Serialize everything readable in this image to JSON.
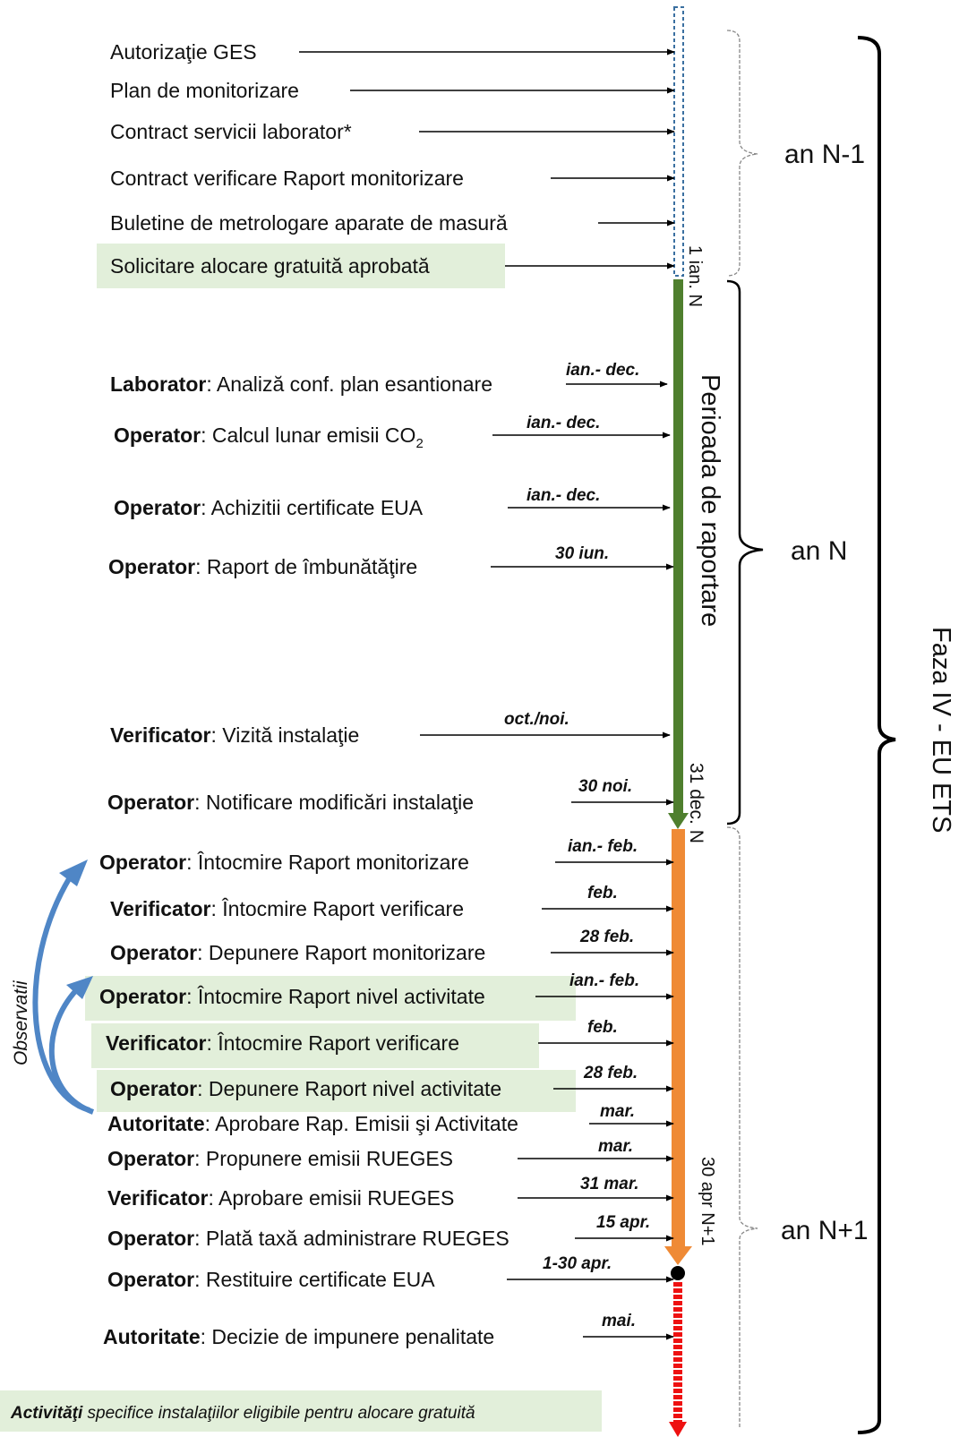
{
  "diagram": {
    "items": [
      {
        "label": "Autorizaţie GES",
        "highlight": false,
        "date": ""
      },
      {
        "label": "Plan de monitorizare",
        "highlight": false,
        "date": ""
      },
      {
        "label": "Contract servicii laborator*",
        "highlight": false,
        "date": ""
      },
      {
        "label": "Contract verificare Raport monitorizare",
        "highlight": false,
        "date": ""
      },
      {
        "label": "Buletine de metrologare aparate de masură",
        "highlight": false,
        "date": ""
      },
      {
        "label": "Solicitare alocare gratuită aprobată",
        "highlight": true,
        "date": ""
      },
      {
        "role": "Laborator",
        "label": ": Analiză conf. plan esantionare",
        "highlight": false,
        "date": "ian.- dec."
      },
      {
        "role": "Operator",
        "label": ": Calcul lunar emisii CO",
        "sub": "2",
        "highlight": false,
        "date": "ian.- dec."
      },
      {
        "role": "Operator",
        "label": ": Achizitii certificate EUA",
        "highlight": false,
        "date": "ian.- dec."
      },
      {
        "role": "Operator",
        "label": ": Raport de îmbunătăţire",
        "highlight": false,
        "date": "30 iun."
      },
      {
        "role": "Verificator",
        "label": ": Vizită instalaţie",
        "highlight": false,
        "date": "oct./noi."
      },
      {
        "role": "Operator",
        "label": ": Notificare modificări instalaţie",
        "highlight": false,
        "date": "30 noi."
      },
      {
        "role": "Operator",
        "label": ": Întocmire Raport monitorizare",
        "highlight": false,
        "date": "ian.- feb."
      },
      {
        "role": "Verificator",
        "label": ": Întocmire Raport verificare",
        "highlight": false,
        "date": "feb."
      },
      {
        "role": "Operator",
        "label": ": Depunere Raport monitorizare",
        "highlight": false,
        "date": "28 feb."
      },
      {
        "role": "Operator",
        "label": ": Întocmire Raport nivel activitate",
        "highlight": true,
        "date": "ian.- feb."
      },
      {
        "role": "Verificator",
        "label": ": Întocmire Raport verificare",
        "highlight": true,
        "date": "feb."
      },
      {
        "role": "Operator",
        "label": ": Depunere Raport nivel activitate",
        "highlight": true,
        "date": "28 feb."
      },
      {
        "role": "Autoritate",
        "label": ": Aprobare Rap. Emisii şi Activitate",
        "highlight": false,
        "date": "mar."
      },
      {
        "role": "Operator",
        "label": ": Propunere emisii RUEGES",
        "highlight": false,
        "date": "mar."
      },
      {
        "role": "Verificator",
        "label": ": Aprobare emisii RUEGES",
        "highlight": false,
        "date": "31 mar."
      },
      {
        "role": "Operator",
        "label": ": Plată taxă administrare RUEGES",
        "highlight": false,
        "date": "15 apr."
      },
      {
        "role": "Operator",
        "label": ": Restituire certificate EUA",
        "highlight": false,
        "date": "1-30 apr."
      },
      {
        "role": "Autoritate",
        "label": ": Decizie de impunere penalitate",
        "highlight": false,
        "date": "mai."
      }
    ],
    "timeline": {
      "start_label": "1 ian. N",
      "period_label": "Perioada de raportare",
      "end_label": "31 dec. N",
      "return_label": "30 apr N+1",
      "colors": {
        "dashed": "#3a6fa0",
        "green": "#4f7f2e",
        "orange": "#ef8a35",
        "red": "#ee1111",
        "highlight": "#e2efda",
        "curve": "#4f86c6"
      }
    },
    "years": [
      "an N-1",
      "an N",
      "an N+1"
    ],
    "phase": "Faza IV - EU ETS",
    "observations": "Observatii",
    "legend": {
      "bold": "Activităţi",
      "rest": " specifice instalaţiilor eligibile pentru alocare gratuită"
    }
  }
}
